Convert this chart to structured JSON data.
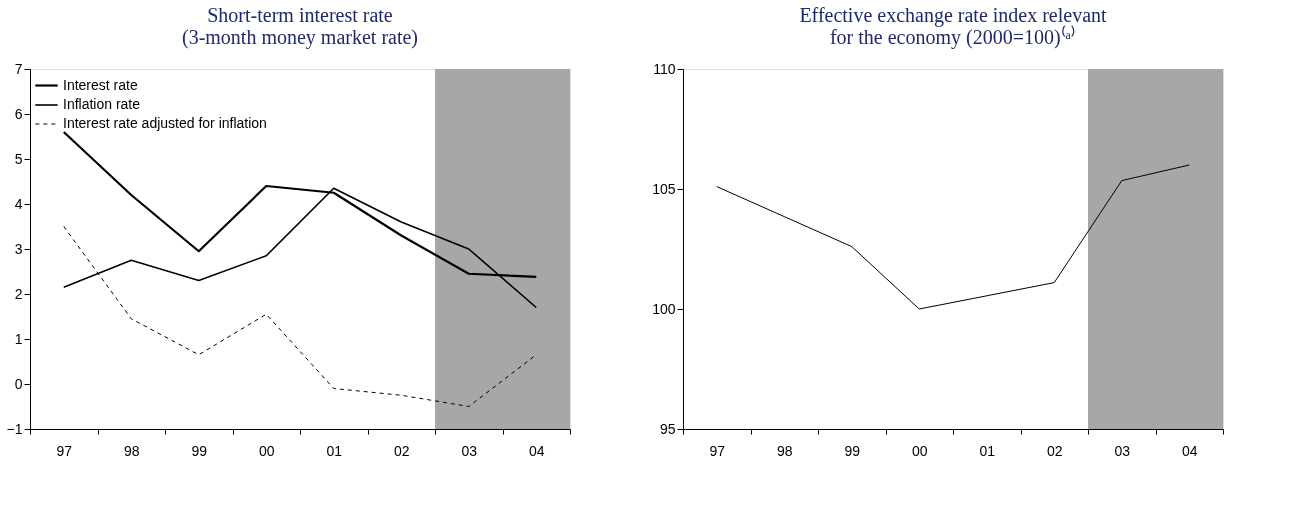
{
  "chart_data": [
    {
      "type": "line",
      "title": [
        "Short-term interest rate",
        "(3-month money market rate)"
      ],
      "categories": [
        "97",
        "98",
        "99",
        "00",
        "01",
        "02",
        "03",
        "04"
      ],
      "series": [
        {
          "name": "Interest rate",
          "color": "#000000",
          "line_style": "solid",
          "values": [
            5.6,
            4.2,
            2.95,
            4.4,
            4.25,
            3.3,
            2.45,
            2.38
          ]
        },
        {
          "name": "Inflation rate",
          "color": "#000000",
          "line_style": "solid",
          "values": [
            2.15,
            2.75,
            2.3,
            2.85,
            4.35,
            3.6,
            3.0,
            1.7
          ]
        },
        {
          "name": "Interest rate adjusted for inflation",
          "color": "#000000",
          "line_style": "dashed",
          "values": [
            3.5,
            1.45,
            0.65,
            1.55,
            -0.1,
            -0.25,
            -0.5,
            0.65
          ]
        }
      ],
      "ylim": [
        -1,
        7
      ],
      "yticks": [
        -1,
        0,
        1,
        2,
        3,
        4,
        5,
        6,
        7
      ],
      "grid": false,
      "legend": "top left",
      "bands": [
        {
          "axis": "x",
          "from": "03",
          "to": "04",
          "color": "#a6a7a9"
        }
      ]
    },
    {
      "type": "line",
      "title": [
        "Effective exchange rate index relevant",
        "for the economy (2000=100)⁽ᵃ⁾"
      ],
      "categories": [
        "97",
        "98",
        "99",
        "00",
        "01",
        "02",
        "03",
        "04"
      ],
      "series": [
        {
          "color": "#000000",
          "line_style": "solid",
          "values": [
            105.1,
            103.85,
            102.6,
            100.0,
            100.55,
            101.1,
            105.35,
            106.0
          ]
        }
      ],
      "ylim": [
        95,
        110
      ],
      "yticks": [
        95,
        100,
        105,
        110
      ],
      "grid": false,
      "legend": false,
      "bands": [
        {
          "axis": "x",
          "from": "03",
          "to": "04",
          "color": "#a6a7a9"
        }
      ]
    }
  ]
}
